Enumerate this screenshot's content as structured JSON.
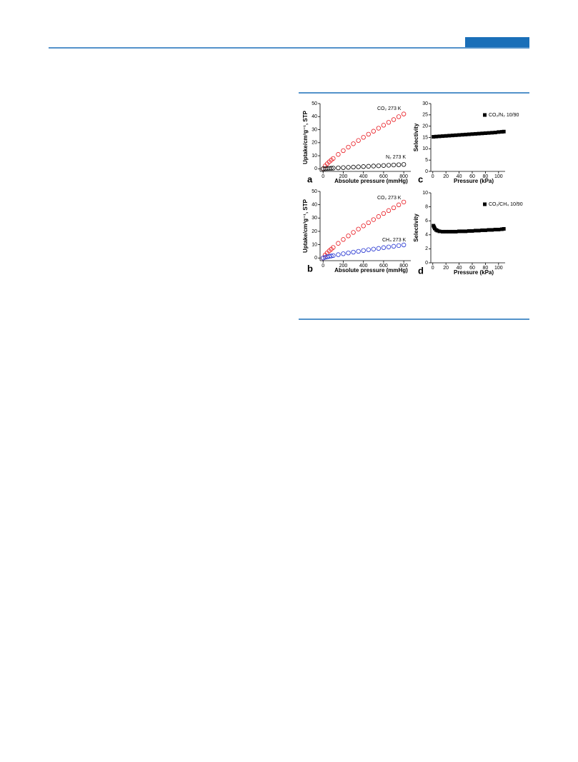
{
  "chart_data": [
    {
      "type": "scatter",
      "panel": "a",
      "x_label": "Absolute pressure (mmHg)",
      "y_label": "Uptake/cm³g⁻¹, STP",
      "xlim": [
        -30,
        870
      ],
      "ylim": [
        -2,
        50
      ],
      "xticks": [
        0,
        200,
        400,
        600,
        800
      ],
      "yticks": [
        0,
        10,
        20,
        30,
        40,
        50
      ],
      "legend": "inline",
      "x": [
        0,
        20,
        40,
        60,
        80,
        100,
        150,
        200,
        250,
        300,
        350,
        400,
        450,
        500,
        550,
        600,
        650,
        700,
        750,
        800
      ],
      "series": [
        {
          "name": "CO₂ 273 K",
          "color": "#e8141b",
          "marker": "open circle",
          "values": [
            0,
            2.2,
            3.8,
            5.3,
            6.6,
            7.9,
            11.0,
            13.9,
            16.6,
            19.2,
            21.7,
            24.1,
            26.5,
            28.8,
            31.1,
            33.4,
            35.6,
            37.7,
            39.9,
            42
          ]
        },
        {
          "name": "N₂ 273 K",
          "color": "#000000",
          "marker": "open circle",
          "values": [
            0,
            0.1,
            0.2,
            0.3,
            0.4,
            0.5,
            0.7,
            0.9,
            1.1,
            1.3,
            1.5,
            1.7,
            1.9,
            2.1,
            2.3,
            2.5,
            2.7,
            2.9,
            3.1,
            3.3
          ]
        }
      ]
    },
    {
      "type": "scatter",
      "panel": "b",
      "x_label": "Absolute pressure (mmHg)",
      "y_label": "Uptake/cm³g⁻¹, STP",
      "xlim": [
        -30,
        870
      ],
      "ylim": [
        -2,
        50
      ],
      "xticks": [
        0,
        200,
        400,
        600,
        800
      ],
      "yticks": [
        0,
        10,
        20,
        30,
        40,
        50
      ],
      "legend": "inline",
      "x": [
        0,
        20,
        40,
        60,
        80,
        100,
        150,
        200,
        250,
        300,
        350,
        400,
        450,
        500,
        550,
        600,
        650,
        700,
        750,
        800
      ],
      "series": [
        {
          "name": "CO₂ 273 K",
          "color": "#e8141b",
          "marker": "open circle",
          "values": [
            0,
            2.2,
            3.8,
            5.3,
            6.6,
            7.9,
            11.0,
            13.9,
            16.6,
            19.2,
            21.7,
            24.1,
            26.5,
            28.8,
            31.1,
            33.4,
            35.6,
            37.7,
            39.9,
            42
          ]
        },
        {
          "name": "CH₄ 273 K",
          "color": "#1f2fd0",
          "marker": "open circle",
          "values": [
            0,
            0.5,
            0.9,
            1.2,
            1.5,
            1.8,
            2.5,
            3.2,
            3.8,
            4.4,
            5.0,
            5.6,
            6.2,
            6.7,
            7.2,
            7.8,
            8.3,
            8.8,
            9.3,
            9.8
          ]
        }
      ]
    },
    {
      "type": "scatter",
      "panel": "c",
      "x_label": "Pressure (kPa)",
      "y_label": "Selectivity",
      "xlim": [
        -3,
        110
      ],
      "ylim": [
        0,
        30
      ],
      "xticks": [
        0,
        20,
        40,
        60,
        80,
        100
      ],
      "yticks": [
        0,
        5,
        10,
        15,
        20,
        25,
        30
      ],
      "legend": "upper right",
      "x": [
        1,
        5,
        10,
        15,
        20,
        25,
        30,
        35,
        40,
        45,
        50,
        55,
        60,
        65,
        70,
        75,
        80,
        85,
        90,
        95,
        100,
        105,
        108
      ],
      "series": [
        {
          "name": "CO₂/N₂ 10/90",
          "color": "#000000",
          "marker": "square",
          "values": [
            15.3,
            15.4,
            15.5,
            15.6,
            15.7,
            15.8,
            15.9,
            16.0,
            16.1,
            16.2,
            16.3,
            16.4,
            16.5,
            16.6,
            16.7,
            16.8,
            16.9,
            17.0,
            17.1,
            17.2,
            17.4,
            17.5,
            17.6
          ]
        }
      ]
    },
    {
      "type": "scatter",
      "panel": "d",
      "x_label": "Pressure (kPa)",
      "y_label": "Selectivity",
      "xlim": [
        -3,
        110
      ],
      "ylim": [
        0,
        10
      ],
      "xticks": [
        0,
        20,
        40,
        60,
        80,
        100
      ],
      "yticks": [
        0,
        2,
        4,
        6,
        8,
        10
      ],
      "legend": "upper right",
      "x": [
        1,
        2,
        3,
        5,
        7,
        10,
        15,
        20,
        25,
        30,
        35,
        40,
        45,
        50,
        55,
        60,
        65,
        70,
        75,
        80,
        85,
        90,
        95,
        100,
        105,
        108
      ],
      "series": [
        {
          "name": "CO₂/CH₄ 10/90",
          "color": "#000000",
          "marker": "square",
          "values": [
            5.3,
            5.1,
            4.9,
            4.7,
            4.6,
            4.5,
            4.45,
            4.45,
            4.45,
            4.45,
            4.45,
            4.5,
            4.5,
            4.5,
            4.55,
            4.55,
            4.6,
            4.6,
            4.65,
            4.65,
            4.7,
            4.7,
            4.75,
            4.75,
            4.8,
            4.85
          ]
        }
      ]
    }
  ]
}
